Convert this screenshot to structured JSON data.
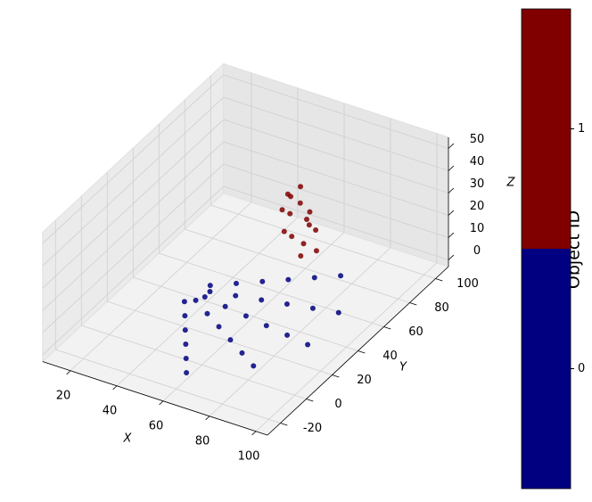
{
  "chart_data": {
    "type": "scatter3d",
    "xlabel": "X",
    "ylabel": "Y",
    "zlabel": "Z",
    "xlim": [
      8,
      105
    ],
    "ylim": [
      -30,
      110
    ],
    "zlim": [
      -3,
      55
    ],
    "xticks": [
      20,
      40,
      60,
      80,
      100
    ],
    "yticks": [
      -20,
      0,
      20,
      40,
      60,
      80,
      100
    ],
    "zticks": [
      0,
      10,
      20,
      30,
      40,
      50
    ],
    "grid": true,
    "series": [
      {
        "color": "#000080",
        "x": [
          35,
          38.2,
          39.9,
          39.7,
          37.7,
          40,
          46.4,
          49.7,
          49.3,
          45.3,
          45,
          54.6,
          59.6,
          59,
          53,
          50,
          62.8,
          69.4,
          68.6,
          60.6,
          55,
          71,
          79.3,
          78.3,
          68.3,
          60,
          79.1,
          89.1,
          88,
          76
        ],
        "y": [
          31.3,
          34.3,
          38.3,
          42.6,
          46.4,
          22.7,
          28.5,
          36.5,
          45.2,
          52.9,
          14,
          22.8,
          34.8,
          47.8,
          59.3,
          5.4,
          17,
          33,
          50.4,
          65.7,
          -3.3,
          11.3,
          31.3,
          53,
          72.2,
          -12,
          5.6,
          29.6,
          55.5,
          78.6
        ],
        "z": [
          0,
          0,
          0,
          0,
          0,
          0,
          0,
          0,
          0,
          0,
          0,
          0,
          0,
          0,
          0,
          0,
          0,
          0,
          0,
          0,
          0,
          0,
          0,
          0,
          0,
          0,
          0,
          0,
          0,
          0
        ]
      },
      {
        "color": "#800000",
        "x": [
          50,
          52,
          55,
          58,
          60,
          57,
          53,
          50,
          48,
          55,
          62,
          58,
          52,
          60,
          54
        ],
        "y": [
          80,
          83,
          85,
          87,
          88,
          84,
          82,
          86,
          88,
          90,
          85,
          80,
          78,
          83,
          87
        ],
        "z": [
          20,
          25,
          22,
          18,
          10,
          5,
          8,
          15,
          22,
          12,
          3,
          2,
          12,
          15,
          28
        ]
      }
    ],
    "colorbar": {
      "label": "Object ID",
      "lim": [
        -0.5,
        1.5
      ],
      "ticks": [
        0,
        1
      ],
      "colors": [
        "#000080",
        "#800000"
      ]
    }
  }
}
